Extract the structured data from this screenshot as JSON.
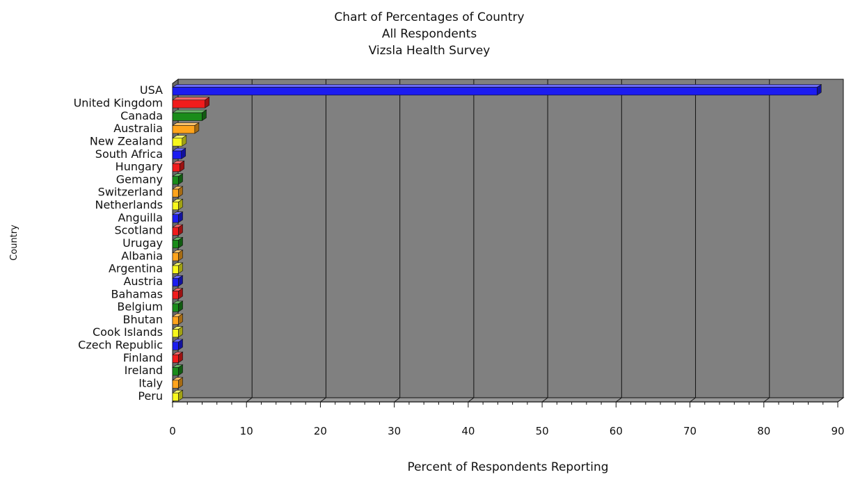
{
  "chart_data": {
    "type": "bar",
    "orientation": "horizontal",
    "title_lines": [
      "Chart of Percentages of Country",
      "All Respondents",
      "Vizsla Health Survey"
    ],
    "xlabel": "Percent of Respondents Reporting",
    "ylabel": "Country",
    "xlim": [
      0,
      90
    ],
    "xticks": [
      0,
      10,
      20,
      30,
      40,
      50,
      60,
      70,
      80,
      90
    ],
    "grid": true,
    "categories": [
      "USA",
      "United Kingdom",
      "Canada",
      "Australia",
      "New Zealand",
      "South Africa",
      "Hungary",
      "Gemany",
      "Switzerland",
      "Netherlands",
      "Anguilla",
      "Scotland",
      "Urugay",
      "Albania",
      "Argentina",
      "Austria",
      "Bahamas",
      "Belgium",
      "Bhutan",
      "Cook Islands",
      "Czech Republic",
      "Finland",
      "Ireland",
      "Italy",
      "Peru"
    ],
    "values": [
      87.2,
      4.4,
      4.0,
      3.0,
      1.3,
      1.2,
      1.0,
      0.8,
      0.8,
      0.8,
      0.8,
      0.8,
      0.8,
      0.8,
      0.8,
      0.8,
      0.8,
      0.8,
      0.8,
      0.8,
      0.8,
      0.8,
      0.8,
      0.8,
      0.8
    ],
    "colors": [
      "#1c1cf0",
      "#f01c1c",
      "#1a8c1a",
      "#ffa41c",
      "#f8f81c"
    ],
    "plot_background": "#808080"
  }
}
